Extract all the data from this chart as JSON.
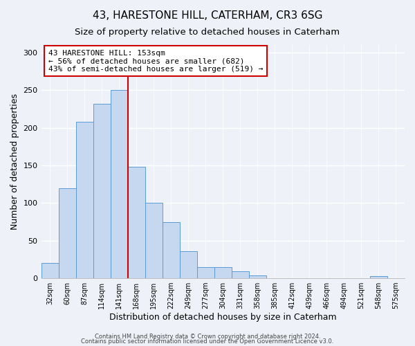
{
  "title": "43, HARESTONE HILL, CATERHAM, CR3 6SG",
  "subtitle": "Size of property relative to detached houses in Caterham",
  "xlabel": "Distribution of detached houses by size in Caterham",
  "ylabel": "Number of detached properties",
  "bar_labels": [
    "32sqm",
    "60sqm",
    "87sqm",
    "114sqm",
    "141sqm",
    "168sqm",
    "195sqm",
    "222sqm",
    "249sqm",
    "277sqm",
    "304sqm",
    "331sqm",
    "358sqm",
    "385sqm",
    "412sqm",
    "439sqm",
    "466sqm",
    "494sqm",
    "521sqm",
    "548sqm",
    "575sqm"
  ],
  "bar_values": [
    20,
    120,
    208,
    232,
    250,
    148,
    100,
    75,
    36,
    15,
    15,
    9,
    4,
    0,
    0,
    0,
    0,
    0,
    0,
    3,
    0
  ],
  "bar_color": "#c5d8f0",
  "bar_edge_color": "#5b9bd5",
  "vline_x": 4.5,
  "vline_color": "#cc0000",
  "annotation_title": "43 HARESTONE HILL: 153sqm",
  "annotation_line1": "← 56% of detached houses are smaller (682)",
  "annotation_line2": "43% of semi-detached houses are larger (519) →",
  "annotation_box_color": "#ffffff",
  "annotation_box_edge_color": "#cc0000",
  "ylim": [
    0,
    310
  ],
  "yticks": [
    0,
    50,
    100,
    150,
    200,
    250,
    300
  ],
  "footer1": "Contains HM Land Registry data © Crown copyright and database right 2024.",
  "footer2": "Contains public sector information licensed under the Open Government Licence v3.0.",
  "background_color": "#eef2f8",
  "plot_background_color": "#eef2f8",
  "grid_color": "#ffffff",
  "title_fontsize": 11,
  "subtitle_fontsize": 9.5,
  "ylabel_fontsize": 9,
  "xlabel_fontsize": 9
}
